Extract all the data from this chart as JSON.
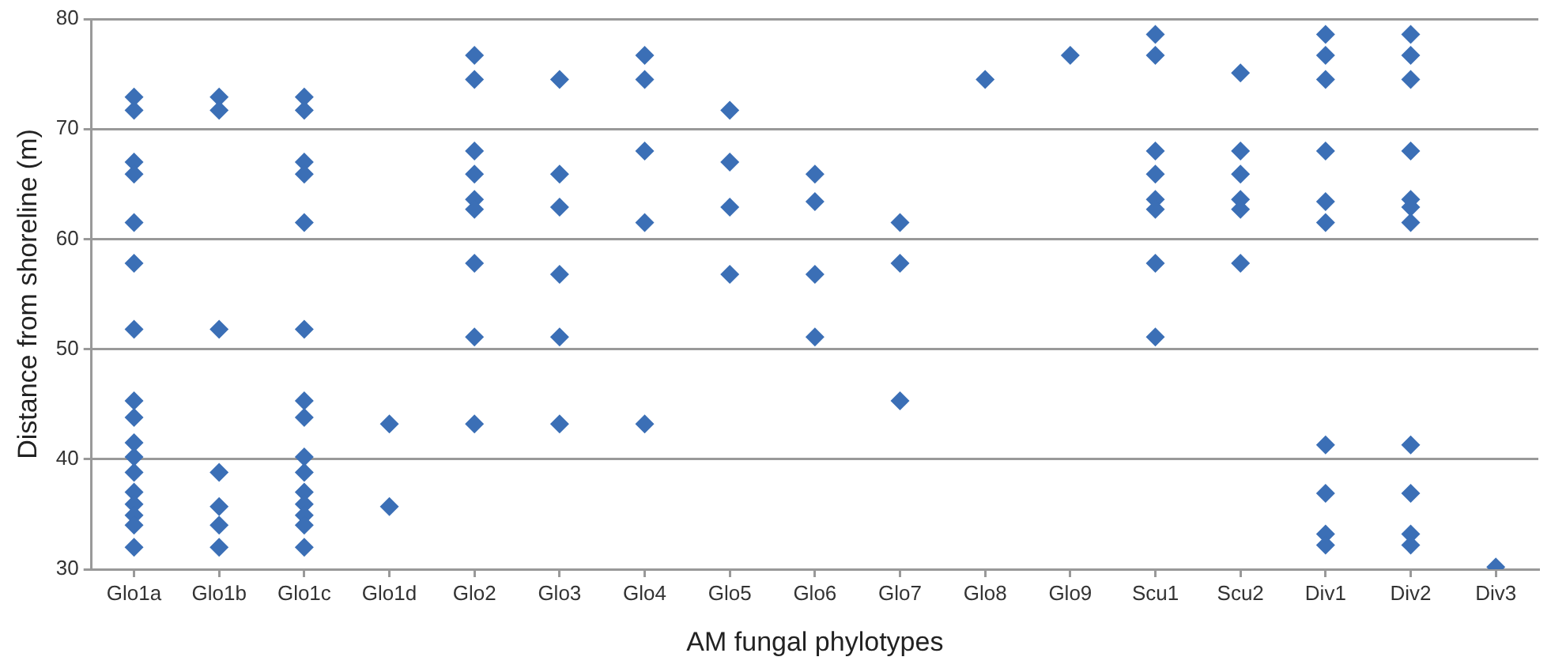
{
  "chart_data": {
    "type": "scatter",
    "xlabel": "AM fungal phylotypes",
    "ylabel": "Distance from shoreline (m)",
    "categories": [
      "Glo1a",
      "Glo1b",
      "Glo1c",
      "Glo1d",
      "Glo2",
      "Glo3",
      "Glo4",
      "Glo5",
      "Glo6",
      "Glo7",
      "Glo8",
      "Glo9",
      "Scu1",
      "Scu2",
      "Div1",
      "Div2",
      "Div3"
    ],
    "series": [
      {
        "color": "#3b6fb6",
        "marker": "diamond",
        "x": [
          "Glo1a",
          "Glo1a",
          "Glo1a",
          "Glo1a",
          "Glo1a",
          "Glo1a",
          "Glo1a",
          "Glo1a",
          "Glo1a",
          "Glo1a",
          "Glo1a",
          "Glo1a",
          "Glo1a",
          "Glo1a",
          "Glo1a",
          "Glo1a",
          "Glo1a",
          "Glo1b",
          "Glo1b",
          "Glo1b",
          "Glo1b",
          "Glo1b",
          "Glo1b",
          "Glo1b",
          "Glo1c",
          "Glo1c",
          "Glo1c",
          "Glo1c",
          "Glo1c",
          "Glo1c",
          "Glo1c",
          "Glo1c",
          "Glo1c",
          "Glo1c",
          "Glo1c",
          "Glo1c",
          "Glo1c",
          "Glo1c",
          "Glo1c",
          "Glo1d",
          "Glo1d",
          "Glo2",
          "Glo2",
          "Glo2",
          "Glo2",
          "Glo2",
          "Glo2",
          "Glo2",
          "Glo2",
          "Glo2",
          "Glo3",
          "Glo3",
          "Glo3",
          "Glo3",
          "Glo3",
          "Glo3",
          "Glo4",
          "Glo4",
          "Glo4",
          "Glo4",
          "Glo4",
          "Glo5",
          "Glo5",
          "Glo5",
          "Glo5",
          "Glo6",
          "Glo6",
          "Glo6",
          "Glo6",
          "Glo7",
          "Glo7",
          "Glo7",
          "Glo8",
          "Glo9",
          "Scu1",
          "Scu1",
          "Scu1",
          "Scu1",
          "Scu1",
          "Scu1",
          "Scu1",
          "Scu1",
          "Scu2",
          "Scu2",
          "Scu2",
          "Scu2",
          "Scu2",
          "Scu2",
          "Div1",
          "Div1",
          "Div1",
          "Div1",
          "Div1",
          "Div1",
          "Div1",
          "Div1",
          "Div1",
          "Div1",
          "Div2",
          "Div2",
          "Div2",
          "Div2",
          "Div2",
          "Div2",
          "Div2",
          "Div2",
          "Div2",
          "Div2",
          "Div2",
          "Div3"
        ],
        "values": [
          72.9,
          71.7,
          67.0,
          65.9,
          61.5,
          57.8,
          51.8,
          45.3,
          43.8,
          41.5,
          40.2,
          38.8,
          37.0,
          35.9,
          34.9,
          34.0,
          32.0,
          72.9,
          71.7,
          51.8,
          38.8,
          35.7,
          34.0,
          32.0,
          72.9,
          71.7,
          67.0,
          65.9,
          61.5,
          51.8,
          45.3,
          43.8,
          40.2,
          38.8,
          37.0,
          35.9,
          34.9,
          34.0,
          32.0,
          43.2,
          35.7,
          76.7,
          74.5,
          68.0,
          65.9,
          63.6,
          62.7,
          57.8,
          51.1,
          43.2,
          74.5,
          65.9,
          62.9,
          56.8,
          51.1,
          43.2,
          76.7,
          74.5,
          68.0,
          61.5,
          43.2,
          71.7,
          67.0,
          62.9,
          56.8,
          65.9,
          63.4,
          56.8,
          51.1,
          61.5,
          57.8,
          45.3,
          74.5,
          76.7,
          78.6,
          76.7,
          68.0,
          65.9,
          63.6,
          62.7,
          57.8,
          51.1,
          75.1,
          68.0,
          65.9,
          63.6,
          62.7,
          57.8,
          78.6,
          76.7,
          74.5,
          68.0,
          63.4,
          61.5,
          41.3,
          36.9,
          33.2,
          32.2,
          78.6,
          76.7,
          74.5,
          68.0,
          63.6,
          62.9,
          61.5,
          41.3,
          36.9,
          33.2,
          32.2,
          30.2
        ]
      }
    ],
    "ylim": [
      30,
      80
    ],
    "yticks": [
      30,
      40,
      50,
      60,
      70,
      80
    ],
    "grid": "y",
    "legend": false
  }
}
